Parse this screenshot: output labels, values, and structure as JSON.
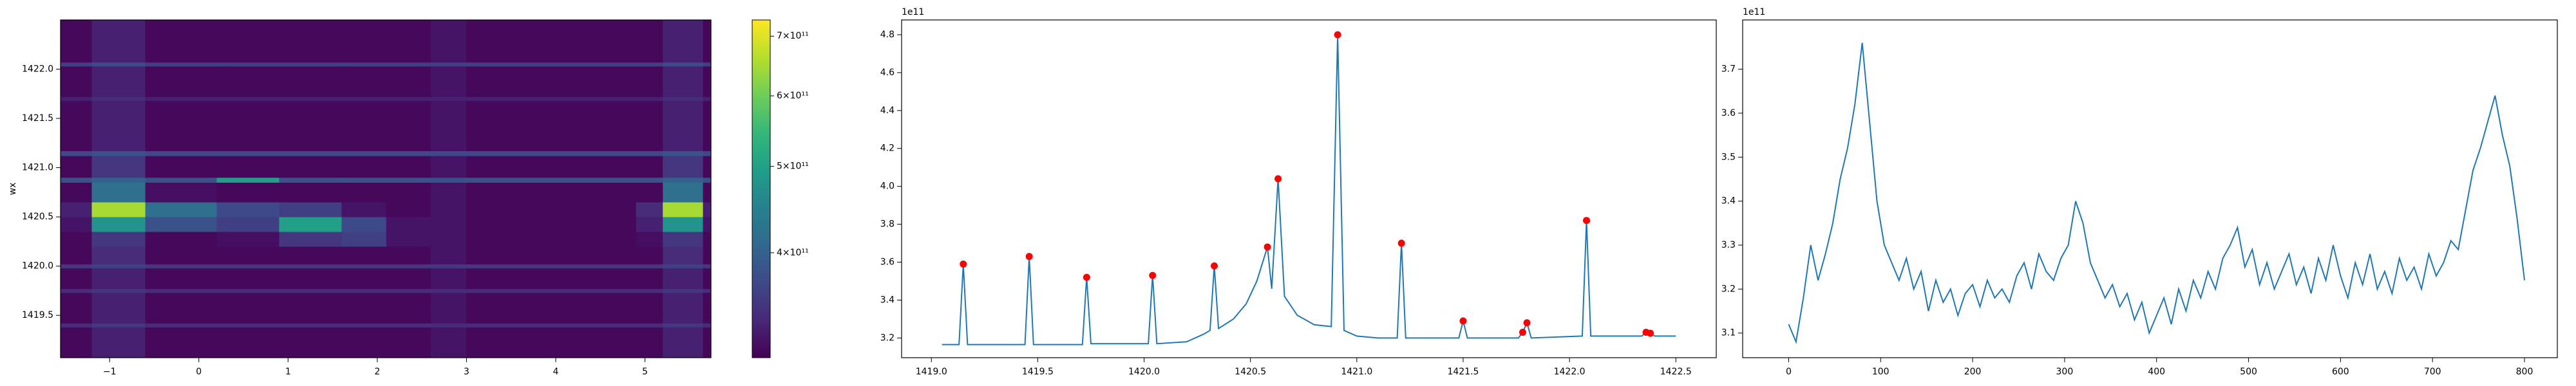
{
  "chart_data": [
    {
      "type": "heatmap",
      "ylabel": "wx",
      "colormap": "viridis",
      "norm": "log",
      "clim": [
        305000000000.0,
        730000000000.0
      ],
      "xlim": [
        -1.55,
        5.74
      ],
      "ylim": [
        1419.07,
        1422.5
      ],
      "xticks": [
        {
          "value": -1,
          "label": "−1"
        },
        0,
        1,
        2,
        3,
        4,
        5
      ],
      "yticks": [
        {
          "value": 1419.5,
          "label": "1419.5"
        },
        {
          "value": 1420.0,
          "label": "1420.0"
        },
        {
          "value": 1420.5,
          "label": "1420.5"
        },
        {
          "value": 1421.0,
          "label": "1421.0"
        },
        {
          "value": 1421.5,
          "label": "1421.5"
        },
        {
          "value": 1422.0,
          "label": "1422.0"
        }
      ],
      "cticks": [
        {
          "value": 400000000000.0,
          "label": "4×10¹¹"
        },
        {
          "value": 500000000000.0,
          "label": "5×10¹¹"
        },
        {
          "value": 600000000000.0,
          "label": "6×10¹¹"
        },
        {
          "value": 700000000000.0,
          "label": "7×10¹¹"
        }
      ],
      "x_edges": [
        -1.55,
        -1.2,
        -0.6,
        0.2,
        0.9,
        1.6,
        2.1,
        2.6,
        3.0,
        4.9,
        5.2,
        5.65,
        5.74
      ],
      "y_edges": [
        1419.07,
        1419.38,
        1419.42,
        1419.73,
        1419.77,
        1419.98,
        1420.02,
        1420.2,
        1420.35,
        1420.5,
        1420.65,
        1420.85,
        1420.9,
        1421.12,
        1421.17,
        1421.68,
        1421.72,
        1422.03,
        1422.07,
        1422.5
      ],
      "z": [
        [
          310000000000.0,
          330000000000.0,
          310000000000.0,
          310000000000.0,
          310000000000.0,
          310000000000.0,
          310000000000.0,
          320000000000.0,
          310000000000.0,
          310000000000.0,
          330000000000.0,
          310000000000.0
        ],
        [
          340000000000.0,
          350000000000.0,
          340000000000.0,
          340000000000.0,
          340000000000.0,
          340000000000.0,
          340000000000.0,
          340000000000.0,
          340000000000.0,
          340000000000.0,
          350000000000.0,
          340000000000.0
        ],
        [
          310000000000.0,
          330000000000.0,
          310000000000.0,
          310000000000.0,
          310000000000.0,
          310000000000.0,
          310000000000.0,
          320000000000.0,
          310000000000.0,
          310000000000.0,
          330000000000.0,
          310000000000.0
        ],
        [
          340000000000.0,
          350000000000.0,
          340000000000.0,
          340000000000.0,
          340000000000.0,
          340000000000.0,
          340000000000.0,
          340000000000.0,
          340000000000.0,
          340000000000.0,
          350000000000.0,
          340000000000.0
        ],
        [
          310000000000.0,
          330000000000.0,
          310000000000.0,
          310000000000.0,
          310000000000.0,
          310000000000.0,
          310000000000.0,
          320000000000.0,
          310000000000.0,
          310000000000.0,
          330000000000.0,
          310000000000.0
        ],
        [
          350000000000.0,
          360000000000.0,
          350000000000.0,
          350000000000.0,
          350000000000.0,
          350000000000.0,
          350000000000.0,
          350000000000.0,
          350000000000.0,
          350000000000.0,
          360000000000.0,
          350000000000.0
        ],
        [
          310000000000.0,
          340000000000.0,
          310000000000.0,
          310000000000.0,
          310000000000.0,
          310000000000.0,
          310000000000.0,
          320000000000.0,
          310000000000.0,
          310000000000.0,
          340000000000.0,
          310000000000.0
        ],
        [
          310000000000.0,
          350000000000.0,
          310000000000.0,
          315000000000.0,
          350000000000.0,
          360000000000.0,
          320000000000.0,
          320000000000.0,
          310000000000.0,
          315000000000.0,
          350000000000.0,
          310000000000.0
        ],
        [
          320000000000.0,
          480000000000.0,
          380000000000.0,
          360000000000.0,
          500000000000.0,
          370000000000.0,
          320000000000.0,
          320000000000.0,
          310000000000.0,
          330000000000.0,
          480000000000.0,
          320000000000.0
        ],
        [
          330000000000.0,
          650000000000.0,
          420000000000.0,
          370000000000.0,
          360000000000.0,
          320000000000.0,
          310000000000.0,
          320000000000.0,
          310000000000.0,
          340000000000.0,
          650000000000.0,
          330000000000.0
        ],
        [
          310000000000.0,
          420000000000.0,
          315000000000.0,
          310000000000.0,
          310000000000.0,
          310000000000.0,
          310000000000.0,
          320000000000.0,
          310000000000.0,
          310000000000.0,
          420000000000.0,
          310000000000.0
        ],
        [
          380000000000.0,
          400000000000.0,
          380000000000.0,
          500000000000.0,
          380000000000.0,
          380000000000.0,
          380000000000.0,
          380000000000.0,
          380000000000.0,
          380000000000.0,
          400000000000.0,
          380000000000.0
        ],
        [
          310000000000.0,
          350000000000.0,
          310000000000.0,
          310000000000.0,
          310000000000.0,
          310000000000.0,
          310000000000.0,
          320000000000.0,
          310000000000.0,
          310000000000.0,
          350000000000.0,
          310000000000.0
        ],
        [
          370000000000.0,
          380000000000.0,
          370000000000.0,
          370000000000.0,
          370000000000.0,
          370000000000.0,
          370000000000.0,
          370000000000.0,
          370000000000.0,
          370000000000.0,
          380000000000.0,
          370000000000.0
        ],
        [
          310000000000.0,
          330000000000.0,
          310000000000.0,
          310000000000.0,
          310000000000.0,
          310000000000.0,
          310000000000.0,
          320000000000.0,
          310000000000.0,
          310000000000.0,
          330000000000.0,
          310000000000.0
        ],
        [
          330000000000.0,
          340000000000.0,
          330000000000.0,
          330000000000.0,
          330000000000.0,
          330000000000.0,
          330000000000.0,
          330000000000.0,
          330000000000.0,
          330000000000.0,
          340000000000.0,
          330000000000.0
        ],
        [
          310000000000.0,
          330000000000.0,
          310000000000.0,
          310000000000.0,
          310000000000.0,
          310000000000.0,
          310000000000.0,
          320000000000.0,
          310000000000.0,
          310000000000.0,
          330000000000.0,
          310000000000.0
        ],
        [
          360000000000.0,
          370000000000.0,
          360000000000.0,
          360000000000.0,
          360000000000.0,
          360000000000.0,
          360000000000.0,
          360000000000.0,
          360000000000.0,
          360000000000.0,
          370000000000.0,
          360000000000.0
        ],
        [
          310000000000.0,
          330000000000.0,
          310000000000.0,
          310000000000.0,
          310000000000.0,
          310000000000.0,
          310000000000.0,
          320000000000.0,
          310000000000.0,
          310000000000.0,
          330000000000.0,
          310000000000.0
        ]
      ]
    },
    {
      "type": "line",
      "offset_label": "1e11",
      "color": "#1f77b4",
      "xlim": [
        1418.86,
        1422.69
      ],
      "ylim": [
        309600000000.0,
        487800000000.0
      ],
      "xticks": [
        {
          "value": 1419.0,
          "label": "1419.0"
        },
        {
          "value": 1419.5,
          "label": "1419.5"
        },
        {
          "value": 1420.0,
          "label": "1420.0"
        },
        {
          "value": 1420.5,
          "label": "1420.5"
        },
        {
          "value": 1421.0,
          "label": "1421.0"
        },
        {
          "value": 1421.5,
          "label": "1421.5"
        },
        {
          "value": 1422.0,
          "label": "1422.0"
        },
        {
          "value": 1422.5,
          "label": "1422.5"
        }
      ],
      "yticks": [
        {
          "value": 320000000000.0,
          "label": "3.2"
        },
        {
          "value": 340000000000.0,
          "label": "3.4"
        },
        {
          "value": 360000000000.0,
          "label": "3.6"
        },
        {
          "value": 380000000000.0,
          "label": "3.8"
        },
        {
          "value": 400000000000.0,
          "label": "4.0"
        },
        {
          "value": 420000000000.0,
          "label": "4.2"
        },
        {
          "value": 440000000000.0,
          "label": "4.4"
        },
        {
          "value": 460000000000.0,
          "label": "4.6"
        },
        {
          "value": 480000000000.0,
          "label": "4.8"
        }
      ],
      "x": [
        1419.05,
        1419.13,
        1419.15,
        1419.17,
        1419.44,
        1419.46,
        1419.48,
        1419.71,
        1419.73,
        1419.75,
        1420.02,
        1420.04,
        1420.06,
        1420.2,
        1420.28,
        1420.31,
        1420.33,
        1420.35,
        1420.42,
        1420.48,
        1420.53,
        1420.58,
        1420.6,
        1420.63,
        1420.66,
        1420.72,
        1420.8,
        1420.88,
        1420.91,
        1420.94,
        1421.0,
        1421.1,
        1421.19,
        1421.21,
        1421.23,
        1421.48,
        1421.5,
        1421.52,
        1421.76,
        1421.78,
        1421.8,
        1421.82,
        1422.06,
        1422.08,
        1422.1,
        1422.34,
        1422.36,
        1422.38,
        1422.4,
        1422.5
      ],
      "values": [
        316500000000.0,
        316500000000.0,
        359000000000.0,
        316500000000.0,
        316500000000.0,
        363000000000.0,
        316500000000.0,
        316500000000.0,
        352000000000.0,
        317000000000.0,
        317000000000.0,
        353000000000.0,
        317000000000.0,
        318000000000.0,
        322000000000.0,
        324000000000.0,
        358000000000.0,
        325000000000.0,
        330000000000.0,
        338000000000.0,
        350000000000.0,
        368000000000.0,
        346000000000.0,
        404000000000.0,
        342000000000.0,
        332000000000.0,
        327000000000.0,
        326000000000.0,
        480000000000.0,
        324000000000.0,
        321000000000.0,
        320000000000.0,
        320000000000.0,
        370000000000.0,
        320000000000.0,
        320000000000.0,
        329000000000.0,
        320000000000.0,
        320000000000.0,
        323000000000.0,
        328000000000.0,
        320000000000.0,
        321000000000.0,
        382000000000.0,
        321000000000.0,
        321000000000.0,
        323000000000.0,
        322500000000.0,
        321000000000.0,
        321000000000.0
      ],
      "peaks": {
        "color": "#ff0000",
        "x": [
          1419.15,
          1419.46,
          1419.73,
          1420.04,
          1420.33,
          1420.58,
          1420.63,
          1420.91,
          1421.21,
          1421.5,
          1421.78,
          1421.8,
          1422.08,
          1422.36,
          1422.38
        ],
        "values": [
          359000000000.0,
          363000000000.0,
          352000000000.0,
          353000000000.0,
          358000000000.0,
          368000000000.0,
          404000000000.0,
          480000000000.0,
          370000000000.0,
          329000000000.0,
          323000000000.0,
          328000000000.0,
          382000000000.0,
          323000000000.0,
          322500000000.0
        ]
      }
    },
    {
      "type": "line",
      "offset_label": "1e11",
      "color": "#1f77b4",
      "xlim": [
        -50,
        835.7
      ],
      "ylim": [
        304400000000.0,
        381200000000.0
      ],
      "xticks": [
        0,
        100,
        200,
        300,
        400,
        500,
        600,
        700,
        800
      ],
      "yticks": [
        {
          "value": 310000000000.0,
          "label": "3.1"
        },
        {
          "value": 320000000000.0,
          "label": "3.2"
        },
        {
          "value": 330000000000.0,
          "label": "3.3"
        },
        {
          "value": 340000000000.0,
          "label": "3.4"
        },
        {
          "value": 350000000000.0,
          "label": "3.5"
        },
        {
          "value": 360000000000.0,
          "label": "3.6"
        },
        {
          "value": 370000000000.0,
          "label": "3.7"
        }
      ],
      "x": [
        0,
        8,
        16,
        24,
        32,
        40,
        48,
        56,
        64,
        72,
        80,
        88,
        96,
        104,
        112,
        120,
        128,
        136,
        144,
        152,
        160,
        168,
        176,
        184,
        192,
        200,
        208,
        216,
        224,
        232,
        240,
        248,
        256,
        264,
        272,
        280,
        288,
        296,
        304,
        312,
        320,
        328,
        336,
        344,
        352,
        360,
        368,
        376,
        384,
        392,
        400,
        408,
        416,
        424,
        432,
        440,
        448,
        456,
        464,
        472,
        480,
        488,
        496,
        504,
        512,
        520,
        528,
        536,
        544,
        552,
        560,
        568,
        576,
        584,
        592,
        600,
        608,
        616,
        624,
        632,
        640,
        648,
        656,
        664,
        672,
        680,
        688,
        696,
        704,
        712,
        720,
        728,
        736,
        744,
        752,
        760,
        768,
        776,
        784,
        792,
        800
      ],
      "values": [
        312000000000.0,
        308000000000.0,
        318000000000.0,
        330000000000.0,
        322000000000.0,
        328000000000.0,
        335000000000.0,
        345000000000.0,
        352000000000.0,
        362000000000.0,
        376000000000.0,
        358000000000.0,
        340000000000.0,
        330000000000.0,
        326000000000.0,
        322000000000.0,
        327000000000.0,
        320000000000.0,
        324000000000.0,
        315000000000.0,
        322000000000.0,
        317000000000.0,
        320000000000.0,
        314000000000.0,
        319000000000.0,
        321000000000.0,
        316000000000.0,
        322000000000.0,
        318000000000.0,
        320000000000.0,
        317000000000.0,
        323000000000.0,
        326000000000.0,
        320000000000.0,
        328000000000.0,
        324000000000.0,
        322000000000.0,
        327000000000.0,
        330000000000.0,
        340000000000.0,
        335000000000.0,
        326000000000.0,
        322000000000.0,
        318000000000.0,
        321000000000.0,
        316000000000.0,
        319000000000.0,
        313000000000.0,
        317000000000.0,
        310000000000.0,
        314000000000.0,
        318000000000.0,
        312000000000.0,
        320000000000.0,
        315000000000.0,
        322000000000.0,
        318000000000.0,
        324000000000.0,
        320000000000.0,
        327000000000.0,
        330000000000.0,
        334000000000.0,
        325000000000.0,
        329000000000.0,
        321000000000.0,
        326000000000.0,
        320000000000.0,
        324000000000.0,
        328000000000.0,
        321000000000.0,
        325000000000.0,
        319000000000.0,
        327000000000.0,
        322000000000.0,
        330000000000.0,
        323000000000.0,
        318000000000.0,
        326000000000.0,
        321000000000.0,
        328000000000.0,
        320000000000.0,
        324000000000.0,
        319000000000.0,
        327000000000.0,
        322000000000.0,
        325000000000.0,
        320000000000.0,
        328000000000.0,
        323000000000.0,
        326000000000.0,
        331000000000.0,
        329000000000.0,
        338000000000.0,
        347000000000.0,
        352000000000.0,
        358000000000.0,
        364000000000.0,
        355000000000.0,
        348000000000.0,
        336000000000.0,
        322000000000.0
      ]
    }
  ]
}
